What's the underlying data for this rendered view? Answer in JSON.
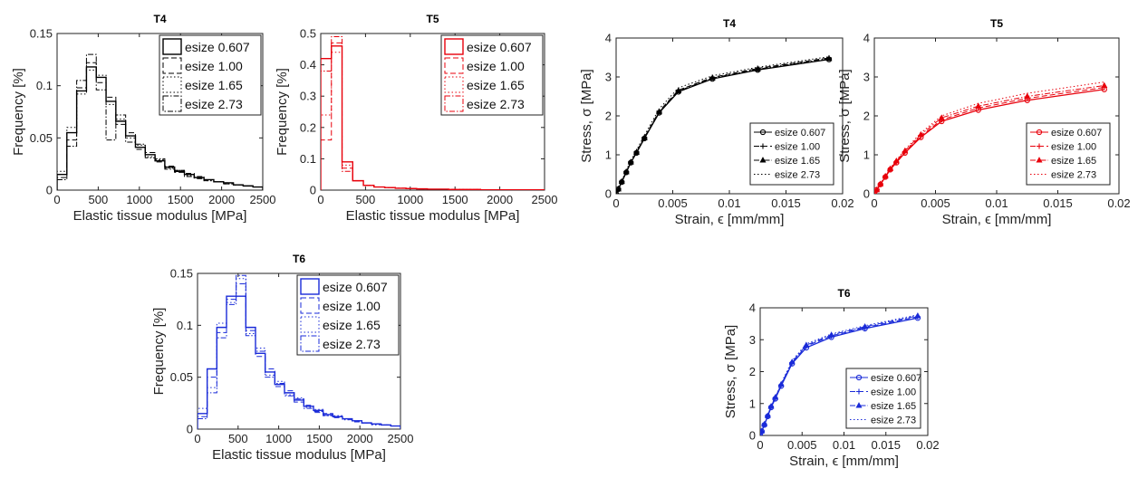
{
  "chart_data": [
    {
      "id": "hist-T4",
      "type": "histogram",
      "title": "T4",
      "xlabel": "Elastic tissue modulus [MPa]",
      "ylabel": "Frequency [%]",
      "xlim": [
        0,
        2500
      ],
      "ylim": [
        0,
        0.15
      ],
      "xticks": [
        0,
        500,
        1000,
        1500,
        2000,
        2500
      ],
      "yticks": [
        0,
        0.05,
        0.1,
        0.15
      ],
      "ytick_labels": [
        "0",
        "0.05",
        "0.1",
        "0.15"
      ],
      "color": "#000000",
      "legend_position": "top-right",
      "series": [
        {
          "name": "esize 0.607",
          "dash": "solid",
          "values": [
            0.015,
            0.055,
            0.095,
            0.118,
            0.108,
            0.085,
            0.066,
            0.052,
            0.041,
            0.034,
            0.028,
            0.022,
            0.018,
            0.015,
            0.012,
            0.01,
            0.008,
            0.007,
            0.005,
            0.004,
            0.003
          ]
        },
        {
          "name": "esize 1.00",
          "dash": "dash",
          "values": [
            0.012,
            0.048,
            0.098,
            0.122,
            0.103,
            0.089,
            0.063,
            0.055,
            0.039,
            0.036,
            0.027,
            0.023,
            0.017,
            0.016,
            0.011,
            0.01,
            0.008,
            0.006,
            0.005,
            0.004,
            0.003
          ]
        },
        {
          "name": "esize 1.65",
          "dash": "dot",
          "values": [
            0.018,
            0.06,
            0.092,
            0.115,
            0.11,
            0.082,
            0.068,
            0.05,
            0.043,
            0.032,
            0.029,
            0.021,
            0.019,
            0.014,
            0.012,
            0.009,
            0.008,
            0.007,
            0.005,
            0.004,
            0.003
          ]
        },
        {
          "name": "esize 2.73",
          "dash": "dashdot",
          "values": [
            0.01,
            0.042,
            0.105,
            0.13,
            0.096,
            0.048,
            0.072,
            0.046,
            0.044,
            0.031,
            0.03,
            0.02,
            0.019,
            0.013,
            0.013,
            0.009,
            0.008,
            0.006,
            0.005,
            0.004,
            0.003
          ]
        }
      ]
    },
    {
      "id": "hist-T5",
      "type": "histogram",
      "title": "T5",
      "xlabel": "Elastic tissue modulus [MPa]",
      "ylabel": "Frequency [%]",
      "xlim": [
        0,
        2500
      ],
      "ylim": [
        0,
        0.5
      ],
      "xticks": [
        0,
        500,
        1000,
        1500,
        2000,
        2500
      ],
      "yticks": [
        0,
        0.1,
        0.2,
        0.3,
        0.4,
        0.5
      ],
      "ytick_labels": [
        "0",
        "0.1",
        "0.2",
        "0.3",
        "0.4",
        "0.5"
      ],
      "color": "#e8000b",
      "legend_position": "top-right",
      "series": [
        {
          "name": "esize 0.607",
          "dash": "solid",
          "values": [
            0.42,
            0.46,
            0.09,
            0.03,
            0.015,
            0.01,
            0.008,
            0.006,
            0.005,
            0.004,
            0.003,
            0.003,
            0.002,
            0.002,
            0.002,
            0.001,
            0.001,
            0.001,
            0.001,
            0.001,
            0.001
          ]
        },
        {
          "name": "esize 1.00",
          "dash": "dash",
          "values": [
            0.16,
            0.47,
            0.07,
            0.03,
            0.015,
            0.01,
            0.008,
            0.006,
            0.005,
            0.004,
            0.003,
            0.003,
            0.002,
            0.002,
            0.002,
            0.001,
            0.001,
            0.001,
            0.001,
            0.001,
            0.001
          ]
        },
        {
          "name": "esize 1.65",
          "dash": "dot",
          "values": [
            0.24,
            0.44,
            0.08,
            0.03,
            0.015,
            0.01,
            0.008,
            0.006,
            0.005,
            0.004,
            0.003,
            0.003,
            0.002,
            0.002,
            0.002,
            0.001,
            0.001,
            0.001,
            0.001,
            0.001,
            0.001
          ]
        },
        {
          "name": "esize 2.73",
          "dash": "dashdot",
          "values": [
            0.38,
            0.49,
            0.06,
            0.03,
            0.015,
            0.01,
            0.008,
            0.006,
            0.005,
            0.004,
            0.003,
            0.003,
            0.002,
            0.002,
            0.002,
            0.001,
            0.001,
            0.001,
            0.001,
            0.001,
            0.001
          ]
        }
      ]
    },
    {
      "id": "hist-T6",
      "type": "histogram",
      "title": "T6",
      "xlabel": "Elastic tissue modulus [MPa]",
      "ylabel": "Frequency [%]",
      "xlim": [
        0,
        2500
      ],
      "ylim": [
        0,
        0.15
      ],
      "xticks": [
        0,
        500,
        1000,
        1500,
        2000,
        2500
      ],
      "yticks": [
        0,
        0.05,
        0.1,
        0.15
      ],
      "ytick_labels": [
        "0",
        "0.05",
        "0.1",
        "0.15"
      ],
      "color": "#1a2bd8",
      "legend_position": "top-right",
      "series": [
        {
          "name": "esize 0.607",
          "dash": "solid",
          "values": [
            0.015,
            0.058,
            0.098,
            0.128,
            0.128,
            0.098,
            0.073,
            0.055,
            0.043,
            0.035,
            0.028,
            0.022,
            0.018,
            0.014,
            0.012,
            0.01,
            0.008,
            0.006,
            0.005,
            0.004,
            0.003
          ]
        },
        {
          "name": "esize 1.00",
          "dash": "dash",
          "values": [
            0.012,
            0.05,
            0.093,
            0.125,
            0.14,
            0.095,
            0.07,
            0.058,
            0.041,
            0.037,
            0.026,
            0.023,
            0.016,
            0.015,
            0.011,
            0.01,
            0.007,
            0.006,
            0.005,
            0.004,
            0.003
          ]
        },
        {
          "name": "esize 1.65",
          "dash": "dot",
          "values": [
            0.02,
            0.04,
            0.102,
            0.122,
            0.145,
            0.092,
            0.078,
            0.052,
            0.046,
            0.033,
            0.03,
            0.021,
            0.019,
            0.013,
            0.013,
            0.009,
            0.008,
            0.006,
            0.004,
            0.004,
            0.003
          ]
        },
        {
          "name": "esize 2.73",
          "dash": "dashdot",
          "values": [
            0.01,
            0.035,
            0.088,
            0.12,
            0.148,
            0.09,
            0.075,
            0.05,
            0.044,
            0.032,
            0.029,
            0.02,
            0.017,
            0.013,
            0.012,
            0.009,
            0.008,
            0.006,
            0.005,
            0.004,
            0.003
          ]
        }
      ]
    },
    {
      "id": "line-T4",
      "type": "line",
      "title": "T4",
      "xlabel": "Strain, ϵ [mm/mm]",
      "ylabel": "Stress, σ [MPa]",
      "xlim": [
        0,
        0.02
      ],
      "ylim": [
        0,
        4
      ],
      "xticks": [
        0,
        0.005,
        0.01,
        0.015,
        0.02
      ],
      "xtick_labels": [
        "0",
        "0.005",
        "0.01",
        "0.015",
        "0.02"
      ],
      "yticks": [
        0,
        1,
        2,
        3,
        4
      ],
      "ytick_labels": [
        "0",
        "1",
        "2",
        "3",
        "4"
      ],
      "color": "#000000",
      "legend_position": "bottom-right",
      "x": [
        0,
        0.0002,
        0.0005,
        0.0009,
        0.0013,
        0.0018,
        0.0025,
        0.0038,
        0.0055,
        0.0085,
        0.0125,
        0.0188
      ],
      "series": [
        {
          "name": "esize 0.607",
          "dash": "solid",
          "marker": "circle",
          "values": [
            0,
            0.12,
            0.3,
            0.55,
            0.8,
            1.05,
            1.42,
            2.08,
            2.62,
            2.95,
            3.18,
            3.45
          ]
        },
        {
          "name": "esize 1.00",
          "dash": "dash",
          "marker": "plus",
          "values": [
            0,
            0.13,
            0.32,
            0.57,
            0.82,
            1.08,
            1.45,
            2.12,
            2.66,
            2.99,
            3.22,
            3.49
          ]
        },
        {
          "name": "esize 1.65",
          "dash": "dashdot",
          "marker": "triangle",
          "values": [
            0,
            0.12,
            0.31,
            0.56,
            0.81,
            1.06,
            1.43,
            2.1,
            2.64,
            2.97,
            3.2,
            3.47
          ]
        },
        {
          "name": "esize 2.73",
          "dash": "dot",
          "marker": "none",
          "values": [
            0,
            0.14,
            0.34,
            0.6,
            0.86,
            1.12,
            1.5,
            2.18,
            2.72,
            3.03,
            3.25,
            3.52
          ]
        }
      ]
    },
    {
      "id": "line-T5",
      "type": "line",
      "title": "T5",
      "xlabel": "Strain, ϵ [mm/mm]",
      "ylabel": "Stress, σ [MPa]",
      "xlim": [
        0,
        0.02
      ],
      "ylim": [
        0,
        4
      ],
      "xticks": [
        0,
        0.005,
        0.01,
        0.015,
        0.02
      ],
      "xtick_labels": [
        "0",
        "0.005",
        "0.01",
        "0.015",
        "0.02"
      ],
      "yticks": [
        0,
        1,
        2,
        3,
        4
      ],
      "ytick_labels": [
        "0",
        "1",
        "2",
        "3",
        "4"
      ],
      "color": "#e8000b",
      "legend_position": "bottom-right",
      "x": [
        0,
        0.0002,
        0.0005,
        0.0009,
        0.0013,
        0.0018,
        0.0025,
        0.0038,
        0.0055,
        0.0085,
        0.0125,
        0.0188
      ],
      "series": [
        {
          "name": "esize 0.607",
          "dash": "solid",
          "marker": "circle",
          "values": [
            0,
            0.1,
            0.24,
            0.43,
            0.62,
            0.8,
            1.05,
            1.45,
            1.86,
            2.15,
            2.4,
            2.68
          ]
        },
        {
          "name": "esize 1.00",
          "dash": "dash",
          "marker": "plus",
          "values": [
            0,
            0.1,
            0.25,
            0.44,
            0.63,
            0.82,
            1.08,
            1.48,
            1.9,
            2.2,
            2.45,
            2.73
          ]
        },
        {
          "name": "esize 1.65",
          "dash": "dashdot",
          "marker": "triangle",
          "values": [
            0,
            0.1,
            0.25,
            0.45,
            0.64,
            0.84,
            1.1,
            1.52,
            1.95,
            2.25,
            2.5,
            2.78
          ]
        },
        {
          "name": "esize 2.73",
          "dash": "dot",
          "marker": "none",
          "values": [
            0,
            0.11,
            0.26,
            0.46,
            0.66,
            0.86,
            1.13,
            1.56,
            2.0,
            2.32,
            2.58,
            2.87
          ]
        }
      ]
    },
    {
      "id": "line-T6",
      "type": "line",
      "title": "T6",
      "xlabel": "Strain, ϵ [mm/mm]",
      "ylabel": "Stress, σ [MPa]",
      "xlim": [
        0,
        0.02
      ],
      "ylim": [
        0,
        4
      ],
      "xticks": [
        0,
        0.005,
        0.01,
        0.015,
        0.02
      ],
      "xtick_labels": [
        "0",
        "0.005",
        "0.01",
        "0.015",
        "0.02"
      ],
      "yticks": [
        0,
        1,
        2,
        3,
        4
      ],
      "ytick_labels": [
        "0",
        "1",
        "2",
        "3",
        "4"
      ],
      "color": "#1a2bd8",
      "legend_position": "bottom-right",
      "x": [
        0,
        0.0002,
        0.0005,
        0.0009,
        0.0013,
        0.0018,
        0.0025,
        0.0038,
        0.0055,
        0.0085,
        0.0125,
        0.0188
      ],
      "series": [
        {
          "name": "esize 0.607",
          "dash": "solid",
          "marker": "circle",
          "values": [
            0,
            0.13,
            0.33,
            0.6,
            0.88,
            1.15,
            1.55,
            2.25,
            2.75,
            3.08,
            3.35,
            3.68
          ]
        },
        {
          "name": "esize 1.00",
          "dash": "dash",
          "marker": "plus",
          "values": [
            0,
            0.13,
            0.34,
            0.61,
            0.9,
            1.17,
            1.58,
            2.28,
            2.8,
            3.12,
            3.38,
            3.72
          ]
        },
        {
          "name": "esize 1.65",
          "dash": "dashdot",
          "marker": "triangle",
          "values": [
            0,
            0.14,
            0.35,
            0.62,
            0.91,
            1.19,
            1.6,
            2.3,
            2.83,
            3.15,
            3.41,
            3.75
          ]
        },
        {
          "name": "esize 2.73",
          "dash": "dot",
          "marker": "none",
          "values": [
            0,
            0.14,
            0.36,
            0.64,
            0.93,
            1.21,
            1.63,
            2.34,
            2.87,
            3.18,
            3.44,
            3.78
          ]
        }
      ]
    }
  ]
}
